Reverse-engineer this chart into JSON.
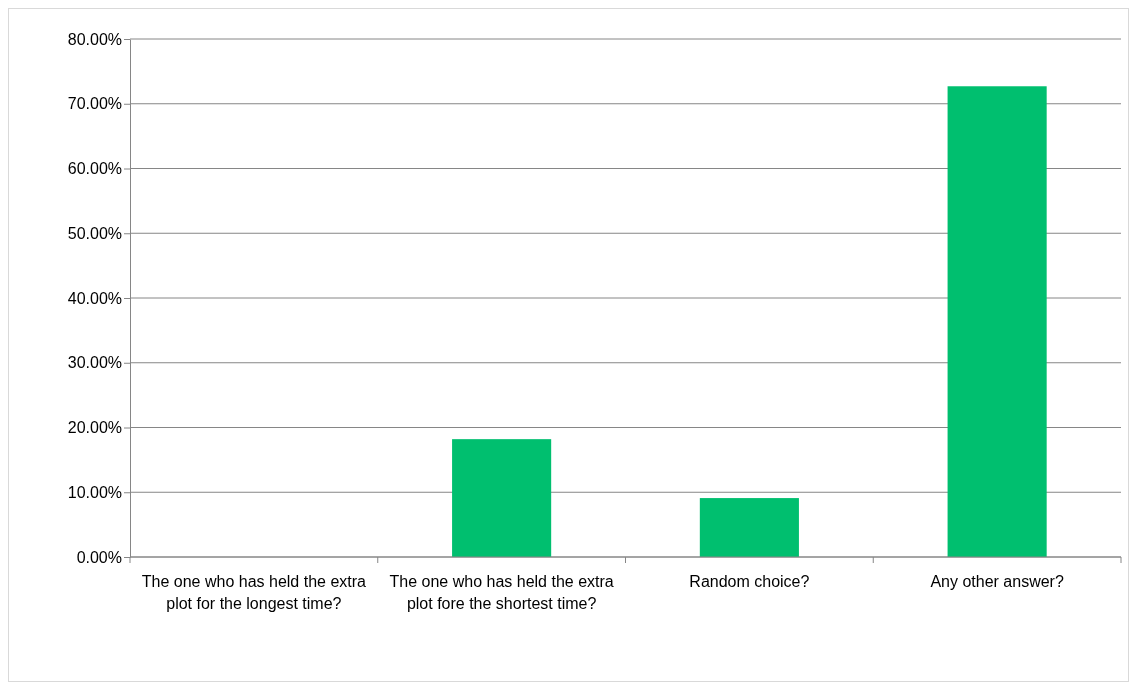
{
  "chart_data": {
    "type": "bar",
    "categories": [
      "The one who has held the extra plot for the longest time?",
      "The one who has held the extra plot fore the shortest time?",
      "Random choice?",
      "Any other answer?"
    ],
    "values": [
      0,
      18.2,
      9.1,
      72.7
    ],
    "color": "#00bf6f",
    "ylim": [
      0,
      80
    ],
    "yticks": [
      {
        "value": 0,
        "label": "0.00%"
      },
      {
        "value": 10,
        "label": "10.00%"
      },
      {
        "value": 20,
        "label": "20.00%"
      },
      {
        "value": 30,
        "label": "30.00%"
      },
      {
        "value": 40,
        "label": "40.00%"
      },
      {
        "value": 50,
        "label": "50.00%"
      },
      {
        "value": 60,
        "label": "60.00%"
      },
      {
        "value": 70,
        "label": "70.00%"
      },
      {
        "value": 80,
        "label": "80.00%"
      }
    ],
    "grid": "y"
  }
}
